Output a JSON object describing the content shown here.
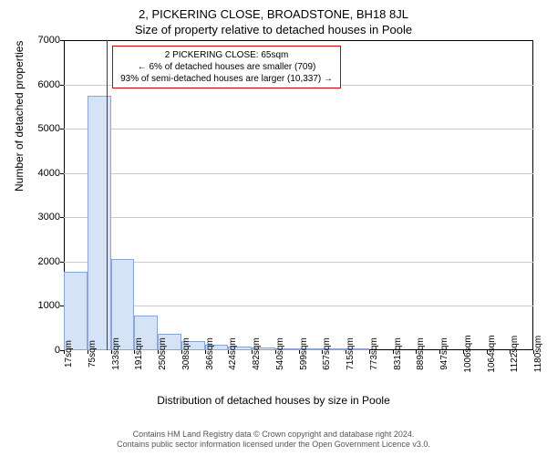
{
  "chart": {
    "type": "histogram",
    "title_main": "2, PICKERING CLOSE, BROADSTONE, BH18 8JL",
    "title_sub": "Size of property relative to detached houses in Poole",
    "title_fontsize": 13,
    "y_axis": {
      "label": "Number of detached properties",
      "min": 0,
      "max": 7000,
      "tick_step": 1000,
      "ticks": [
        0,
        1000,
        2000,
        3000,
        4000,
        5000,
        6000,
        7000
      ]
    },
    "x_axis": {
      "label": "Distribution of detached houses by size in Poole",
      "tick_labels": [
        "17sqm",
        "75sqm",
        "133sqm",
        "191sqm",
        "250sqm",
        "308sqm",
        "366sqm",
        "424sqm",
        "482sqm",
        "540sqm",
        "599sqm",
        "657sqm",
        "715sqm",
        "773sqm",
        "831sqm",
        "889sqm",
        "947sqm",
        "1006sqm",
        "1064sqm",
        "1122sqm",
        "1180sqm"
      ]
    },
    "bars": {
      "values": [
        1780,
        5750,
        2050,
        780,
        380,
        200,
        120,
        80,
        60,
        50,
        40,
        30,
        20,
        0,
        0,
        0,
        0,
        0,
        0,
        0
      ],
      "fill_color": "#d6e2f5",
      "border_color": "#8aa6d6",
      "bar_width_ratio": 1.0
    },
    "marker": {
      "color": "#cc0000",
      "position_category_index": 1,
      "position_fraction_in_bin": 0.83
    },
    "annotation": {
      "border_color": "#cc0000",
      "background": "#ffffff",
      "line1": "2 PICKERING CLOSE: 65sqm",
      "line2": "← 6% of detached houses are smaller (709)",
      "line3": "93% of semi-detached houses are larger (10,337) →",
      "fontsize": 10
    },
    "grid_color": "#cccccc",
    "background_color": "#ffffff",
    "border_color": "#000000"
  },
  "footer": {
    "line1": "Contains HM Land Registry data © Crown copyright and database right 2024.",
    "line2": "Contains public sector information licensed under the Open Government Licence v3.0."
  }
}
